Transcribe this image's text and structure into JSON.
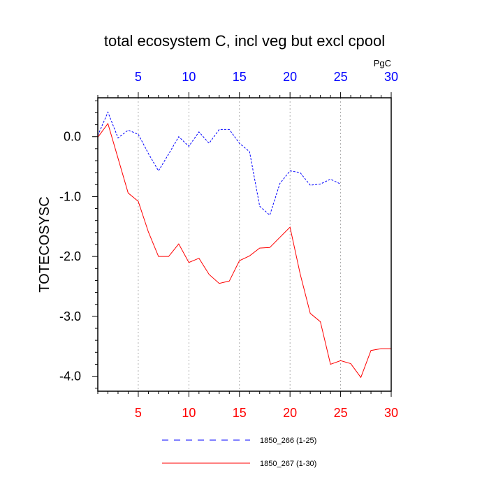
{
  "chart_data": {
    "type": "line",
    "title": "total ecosystem C, incl veg but excl cpool",
    "ylabel": "TOTECOSYSC",
    "units": "PgC",
    "xlim": [
      1,
      30
    ],
    "ylim": [
      -4.25,
      0.65
    ],
    "y_ticks": [
      "0.0",
      "-1.0",
      "-2.0",
      "-3.0",
      "-4.0"
    ],
    "y_tick_values": [
      0,
      -1,
      -2,
      -3,
      -4
    ],
    "x_ticks_bottom": [
      "5",
      "10",
      "15",
      "20",
      "25",
      "30"
    ],
    "x_ticks_top": [
      "5",
      "10",
      "15",
      "20",
      "25",
      "30"
    ],
    "x_tick_values": [
      5,
      10,
      15,
      20,
      25,
      30
    ],
    "grid": "vertical dotted at major x ticks",
    "legend_position": "bottom",
    "series": [
      {
        "name": "1850_266 (1-25)",
        "color": "#0000ff",
        "dash": "dashed",
        "x": [
          1,
          2,
          3,
          4,
          5,
          6,
          7,
          8,
          9,
          10,
          11,
          12,
          13,
          14,
          15,
          16,
          17,
          18,
          19,
          20,
          21,
          22,
          23,
          24,
          25
        ],
        "values": [
          0.02,
          0.41,
          -0.02,
          0.11,
          0.04,
          -0.28,
          -0.57,
          -0.29,
          0.0,
          -0.16,
          0.08,
          -0.11,
          0.12,
          0.12,
          -0.11,
          -0.25,
          -1.16,
          -1.31,
          -0.78,
          -0.57,
          -0.6,
          -0.81,
          -0.79,
          -0.71,
          -0.79
        ]
      },
      {
        "name": "1850_267 (1-30)",
        "color": "#ff0000",
        "dash": "solid",
        "x": [
          1,
          2,
          3,
          4,
          5,
          6,
          7,
          8,
          9,
          10,
          11,
          12,
          13,
          14,
          15,
          16,
          17,
          18,
          19,
          20,
          21,
          22,
          23,
          24,
          25,
          26,
          27,
          28,
          29,
          30
        ],
        "values": [
          -0.01,
          0.22,
          -0.36,
          -0.94,
          -1.08,
          -1.59,
          -2.0,
          -2.0,
          -1.79,
          -2.1,
          -2.03,
          -2.3,
          -2.45,
          -2.41,
          -2.07,
          -1.99,
          -1.86,
          -1.85,
          -1.68,
          -1.51,
          -2.29,
          -2.95,
          -3.09,
          -3.8,
          -3.74,
          -3.79,
          -4.02,
          -3.57,
          -3.54,
          -3.54
        ]
      }
    ]
  }
}
